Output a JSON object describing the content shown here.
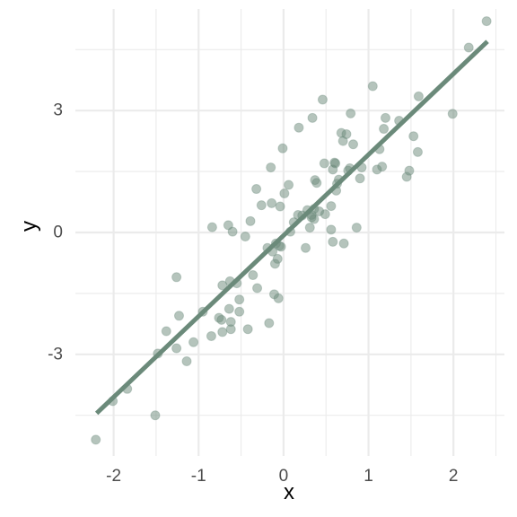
{
  "chart_data": {
    "type": "scatter",
    "xlabel": "x",
    "ylabel": "y",
    "xlim": [
      -2.45,
      2.6
    ],
    "ylim": [
      -5.5,
      5.5
    ],
    "x_ticks": [
      -2,
      -1,
      0,
      1,
      2
    ],
    "x_tick_labels": [
      "-2",
      "-1",
      "0",
      "1",
      "2"
    ],
    "y_ticks": [
      -3,
      0,
      3
    ],
    "y_tick_labels": [
      "-3",
      "0",
      "3"
    ],
    "grid": true,
    "legend": "none",
    "point_color": "#6b8a7a",
    "line_color": "#6b8a7a",
    "fit_line": {
      "x": [
        -2.2,
        2.4
      ],
      "y": [
        -4.45,
        4.7
      ]
    },
    "points": [
      [
        -2.21,
        -5.1
      ],
      [
        -2.01,
        -4.15
      ],
      [
        -1.84,
        -3.85
      ],
      [
        -1.51,
        -4.5
      ],
      [
        -1.48,
        -2.98
      ],
      [
        -1.38,
        -2.43
      ],
      [
        -1.26,
        -1.1
      ],
      [
        -1.26,
        -2.85
      ],
      [
        -1.23,
        -2.05
      ],
      [
        -1.14,
        -3.17
      ],
      [
        -1.06,
        -2.7
      ],
      [
        -0.95,
        -1.95
      ],
      [
        -0.85,
        -2.55
      ],
      [
        -0.84,
        0.13
      ],
      [
        -0.76,
        -2.1
      ],
      [
        -0.73,
        -2.15
      ],
      [
        -0.72,
        -2.45
      ],
      [
        -0.72,
        -1.3
      ],
      [
        -0.65,
        0.18
      ],
      [
        -0.64,
        -1.88
      ],
      [
        -0.63,
        -1.2
      ],
      [
        -0.62,
        -2.2
      ],
      [
        -0.62,
        -2.38
      ],
      [
        -0.6,
        0.02
      ],
      [
        -0.55,
        -1.25
      ],
      [
        -0.52,
        -1.65
      ],
      [
        -0.52,
        -1.95
      ],
      [
        -0.45,
        -0.1
      ],
      [
        -0.42,
        -2.38
      ],
      [
        -0.39,
        0.28
      ],
      [
        -0.36,
        -1.05
      ],
      [
        -0.32,
        1.07
      ],
      [
        -0.31,
        -1.37
      ],
      [
        -0.26,
        0.67
      ],
      [
        -0.19,
        -0.38
      ],
      [
        -0.17,
        -2.23
      ],
      [
        -0.15,
        1.6
      ],
      [
        -0.14,
        0.72
      ],
      [
        -0.13,
        -0.47
      ],
      [
        -0.11,
        -1.52
      ],
      [
        -0.1,
        -0.77
      ],
      [
        -0.09,
        -0.27
      ],
      [
        -0.07,
        -0.65
      ],
      [
        -0.06,
        -1.62
      ],
      [
        -0.05,
        -0.33
      ],
      [
        -0.04,
        0.64
      ],
      [
        -0.03,
        -0.35
      ],
      [
        -0.01,
        2.07
      ],
      [
        0.01,
        0.96
      ],
      [
        0.06,
        1.17
      ],
      [
        0.08,
        0.02
      ],
      [
        0.12,
        0.25
      ],
      [
        0.17,
        0.43
      ],
      [
        0.18,
        2.58
      ],
      [
        0.22,
        0.42
      ],
      [
        0.26,
        -0.38
      ],
      [
        0.28,
        0.55
      ],
      [
        0.31,
        0.12
      ],
      [
        0.33,
        0.37
      ],
      [
        0.33,
        0.43
      ],
      [
        0.34,
        2.82
      ],
      [
        0.36,
        0.58
      ],
      [
        0.36,
        0.33
      ],
      [
        0.37,
        1.29
      ],
      [
        0.39,
        1.22
      ],
      [
        0.42,
        0.52
      ],
      [
        0.46,
        3.27
      ],
      [
        0.48,
        1.7
      ],
      [
        0.49,
        0.45
      ],
      [
        0.56,
        0.65
      ],
      [
        0.56,
        0.07
      ],
      [
        0.58,
        1.55
      ],
      [
        0.58,
        -0.23
      ],
      [
        0.6,
        1.72
      ],
      [
        0.61,
        1.7
      ],
      [
        0.62,
        1.03
      ],
      [
        0.63,
        1.2
      ],
      [
        0.65,
        1.3
      ],
      [
        0.68,
        2.45
      ],
      [
        0.7,
        2.25
      ],
      [
        0.71,
        -0.27
      ],
      [
        0.74,
        2.42
      ],
      [
        0.76,
        1.52
      ],
      [
        0.78,
        1.58
      ],
      [
        0.79,
        2.93
      ],
      [
        0.82,
        2.17
      ],
      [
        0.86,
        0.12
      ],
      [
        0.9,
        1.33
      ],
      [
        0.92,
        1.6
      ],
      [
        1.05,
        3.6
      ],
      [
        1.1,
        1.55
      ],
      [
        1.13,
        2.05
      ],
      [
        1.16,
        1.62
      ],
      [
        1.18,
        2.55
      ],
      [
        1.2,
        2.82
      ],
      [
        1.36,
        2.75
      ],
      [
        1.45,
        1.37
      ],
      [
        1.48,
        1.52
      ],
      [
        1.53,
        2.37
      ],
      [
        1.58,
        1.98
      ],
      [
        1.59,
        3.35
      ],
      [
        1.99,
        2.92
      ],
      [
        2.18,
        4.55
      ],
      [
        2.39,
        5.2
      ]
    ]
  }
}
